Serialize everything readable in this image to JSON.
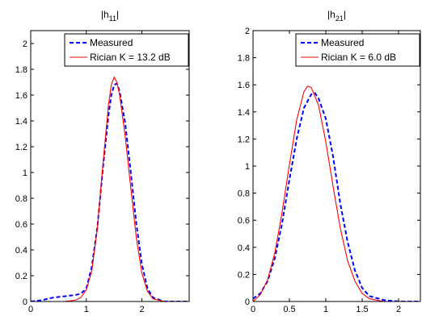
{
  "chart_data": [
    {
      "type": "line",
      "title_main": "|h",
      "title_sub": "11",
      "title_end": "|",
      "xlim": [
        0,
        2.85
      ],
      "ylim": [
        0,
        2.1
      ],
      "xticks": [
        "0",
        "1",
        "2"
      ],
      "xtick_values": [
        0,
        1,
        2
      ],
      "yticks": [
        "0",
        "0.2",
        "0.4",
        "0.6",
        "0.8",
        "1",
        "1.2",
        "1.4",
        "1.6",
        "1.8",
        "2"
      ],
      "ytick_values": [
        0,
        0.2,
        0.4,
        0.6,
        0.8,
        1.0,
        1.2,
        1.4,
        1.6,
        1.8,
        2.0
      ],
      "legend_placement": "top-right",
      "series": [
        {
          "name": "Measured",
          "color": "#0000ff",
          "style": "dashed",
          "x": [
            0,
            0.2,
            0.4,
            0.6,
            0.8,
            0.9,
            1.0,
            1.1,
            1.2,
            1.3,
            1.4,
            1.45,
            1.5,
            1.55,
            1.6,
            1.7,
            1.8,
            1.9,
            2.0,
            2.1,
            2.2,
            2.4,
            2.85
          ],
          "y": [
            0.0,
            0.01,
            0.03,
            0.04,
            0.05,
            0.06,
            0.1,
            0.27,
            0.58,
            1.04,
            1.45,
            1.6,
            1.68,
            1.69,
            1.63,
            1.38,
            1.0,
            0.6,
            0.29,
            0.1,
            0.03,
            0.0,
            0.0
          ]
        },
        {
          "name": "Rician K = 13.2 dB",
          "color": "#ff0000",
          "style": "solid",
          "x": [
            0,
            0.6,
            0.8,
            0.9,
            1.0,
            1.1,
            1.2,
            1.3,
            1.4,
            1.45,
            1.5,
            1.55,
            1.6,
            1.7,
            1.8,
            1.9,
            2.0,
            2.1,
            2.2,
            2.4,
            2.85
          ],
          "y": [
            0.0,
            0.0,
            0.01,
            0.03,
            0.09,
            0.24,
            0.57,
            1.07,
            1.53,
            1.68,
            1.74,
            1.7,
            1.6,
            1.28,
            0.88,
            0.49,
            0.22,
            0.08,
            0.02,
            0.0,
            0.0
          ]
        }
      ]
    },
    {
      "type": "line",
      "title_main": "|h",
      "title_sub": "21",
      "title_end": "|",
      "xlim": [
        0,
        2.3
      ],
      "ylim": [
        0,
        2.0
      ],
      "xticks": [
        "0",
        "0.5",
        "1",
        "1.5",
        "2"
      ],
      "xtick_values": [
        0,
        0.5,
        1.0,
        1.5,
        2.0
      ],
      "yticks": [
        "0",
        "0.2",
        "0.4",
        "0.6",
        "0.8",
        "1",
        "1.2",
        "1.4",
        "1.6",
        "1.8",
        "2"
      ],
      "ytick_values": [
        0,
        0.2,
        0.4,
        0.6,
        0.8,
        1.0,
        1.2,
        1.4,
        1.6,
        1.8,
        2.0
      ],
      "legend_placement": "top-right",
      "series": [
        {
          "name": "Measured",
          "color": "#0000ff",
          "style": "dashed",
          "x": [
            0,
            0.1,
            0.2,
            0.3,
            0.4,
            0.5,
            0.6,
            0.7,
            0.8,
            0.85,
            0.9,
            1.0,
            1.1,
            1.2,
            1.3,
            1.4,
            1.5,
            1.6,
            1.8,
            2.0,
            2.3
          ],
          "y": [
            0.02,
            0.06,
            0.15,
            0.32,
            0.58,
            0.9,
            1.2,
            1.43,
            1.53,
            1.54,
            1.5,
            1.35,
            1.07,
            0.72,
            0.44,
            0.23,
            0.1,
            0.04,
            0.01,
            0.0,
            0.0
          ]
        },
        {
          "name": "Rician K = 6.0 dB",
          "color": "#ff0000",
          "style": "solid",
          "x": [
            0,
            0.1,
            0.2,
            0.3,
            0.4,
            0.5,
            0.6,
            0.7,
            0.75,
            0.8,
            0.9,
            1.0,
            1.1,
            1.2,
            1.3,
            1.4,
            1.5,
            1.6,
            1.8,
            2.0,
            2.3
          ],
          "y": [
            0.0,
            0.05,
            0.16,
            0.36,
            0.66,
            1.01,
            1.34,
            1.55,
            1.59,
            1.58,
            1.45,
            1.18,
            0.85,
            0.54,
            0.3,
            0.15,
            0.06,
            0.02,
            0.0,
            0.0,
            0.0
          ]
        }
      ]
    }
  ]
}
